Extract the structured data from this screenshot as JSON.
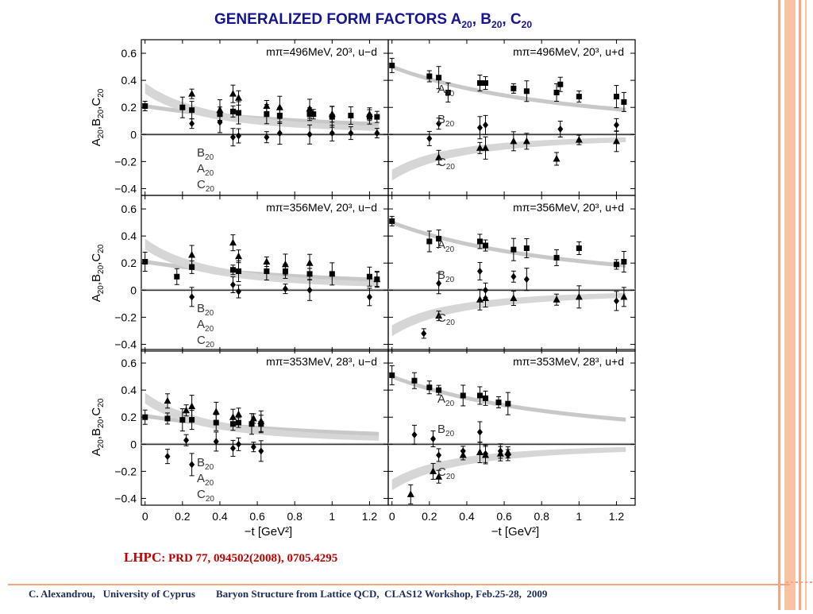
{
  "slide": {
    "title_prefix": "GENERALIZED FORM FACTORS A",
    "title_sub1": "20",
    "title_sep1": ", B",
    "title_sub2": "20",
    "title_sep2": ", C",
    "title_sub3": "20",
    "citation_main": "LHPC",
    "citation_ref": ": PRD 77, 094502(2008), 0705.4295",
    "footer_left": "C. Alexandrou,   University of Cyprus",
    "footer_right": "Baryon Structure from Lattice QCD,  CLAS12 Workshop, Feb.25-28,  2009",
    "colors": {
      "title": "#15158f",
      "citation": "#c00000",
      "footer": "#1d2a5a",
      "border_orange": "#f4a582",
      "band": "#d0d0d0"
    }
  },
  "chart_data": [
    {
      "type": "scatter",
      "panel_label": "mπ=496MeV, 20³, u−d",
      "ylabel": "A20,B20,C20",
      "legend": [
        "B20",
        "A20",
        "C20"
      ],
      "xlim": [
        0,
        1.3
      ],
      "ylim": [
        -0.45,
        0.7
      ],
      "series": [
        {
          "name": "A20",
          "marker": "square",
          "x": [
            0,
            0.2,
            0.25,
            0.4,
            0.47,
            0.5,
            0.65,
            0.72,
            0.88,
            0.9,
            1.0,
            1.1,
            1.2,
            1.24
          ],
          "y": [
            0.21,
            0.2,
            0.18,
            0.15,
            0.17,
            0.16,
            0.15,
            0.14,
            0.15,
            0.15,
            0.13,
            0.14,
            0.13,
            0.13
          ]
        },
        {
          "name": "B20",
          "marker": "diamond",
          "x": [
            0.25,
            0.4,
            0.47,
            0.5,
            0.65,
            0.72,
            0.88,
            1.0,
            1.1,
            1.24
          ],
          "y": [
            0.08,
            0.09,
            -0.02,
            -0.01,
            -0.02,
            0.01,
            0.0,
            0.01,
            0.01,
            0.01
          ]
        },
        {
          "name": "C20",
          "marker": "triangle",
          "x": [
            0.25,
            0.4,
            0.47,
            0.5,
            0.65,
            0.72,
            0.88,
            1.0,
            1.2
          ],
          "y": [
            0.3,
            0.18,
            0.3,
            0.27,
            0.21,
            0.2,
            0.19,
            0.15,
            0.15
          ]
        }
      ]
    },
    {
      "type": "scatter",
      "panel_label": "mπ=496MeV, 20³, u+d",
      "legend": [
        "A20",
        "B20",
        "C20"
      ],
      "xlim": [
        0,
        1.3
      ],
      "ylim": [
        -0.45,
        0.7
      ],
      "series": [
        {
          "name": "A20",
          "marker": "square",
          "x": [
            0,
            0.2,
            0.25,
            0.3,
            0.47,
            0.5,
            0.65,
            0.72,
            0.88,
            0.9,
            1.0,
            1.2,
            1.24
          ],
          "y": [
            0.51,
            0.43,
            0.42,
            0.31,
            0.38,
            0.38,
            0.34,
            0.32,
            0.31,
            0.37,
            0.28,
            0.28,
            0.24
          ]
        },
        {
          "name": "B20",
          "marker": "diamond",
          "x": [
            0.2,
            0.25,
            0.47,
            0.5,
            0.9,
            1.2
          ],
          "y": [
            -0.03,
            0.08,
            0.05,
            0.07,
            0.04,
            0.07
          ]
        },
        {
          "name": "C20",
          "marker": "triangle",
          "x": [
            0.25,
            0.47,
            0.5,
            0.65,
            0.72,
            0.88,
            1.0,
            1.2
          ],
          "y": [
            -0.17,
            -0.1,
            -0.1,
            -0.05,
            -0.05,
            -0.18,
            -0.04,
            -0.05
          ]
        }
      ]
    },
    {
      "type": "scatter",
      "panel_label": "mπ=356MeV, 20³, u−d",
      "ylabel": "A20,B20,C20",
      "legend": [
        "B20",
        "A20",
        "C20"
      ],
      "xlim": [
        0,
        1.3
      ],
      "ylim": [
        -0.45,
        0.7
      ],
      "series": [
        {
          "name": "A20",
          "marker": "square",
          "x": [
            0,
            0.17,
            0.25,
            0.47,
            0.5,
            0.65,
            0.75,
            0.88,
            1.0,
            1.2,
            1.24
          ],
          "y": [
            0.21,
            0.1,
            0.17,
            0.15,
            0.14,
            0.14,
            0.14,
            0.12,
            0.12,
            0.1,
            0.08
          ]
        },
        {
          "name": "B20",
          "marker": "diamond",
          "x": [
            0.25,
            0.47,
            0.5,
            0.75,
            0.88,
            1.2
          ],
          "y": [
            -0.05,
            0.04,
            -0.01,
            0.01,
            0.0,
            -0.05
          ]
        },
        {
          "name": "C20",
          "marker": "triangle",
          "x": [
            0.25,
            0.47,
            0.5,
            0.65,
            0.75,
            0.88,
            1.24
          ],
          "y": [
            0.26,
            0.35,
            0.25,
            0.21,
            0.19,
            0.2,
            0.08
          ]
        }
      ]
    },
    {
      "type": "scatter",
      "panel_label": "mπ=356MeV, 20³, u+d",
      "legend": [
        "A20",
        "B20",
        "C20"
      ],
      "xlim": [
        0,
        1.3
      ],
      "ylim": [
        -0.45,
        0.7
      ],
      "series": [
        {
          "name": "A20",
          "marker": "square",
          "x": [
            0,
            0.2,
            0.25,
            0.47,
            0.5,
            0.65,
            0.72,
            0.88,
            1.0,
            1.2,
            1.24
          ],
          "y": [
            0.51,
            0.36,
            0.38,
            0.36,
            0.33,
            0.3,
            0.31,
            0.24,
            0.31,
            0.19,
            0.21
          ]
        },
        {
          "name": "B20",
          "marker": "diamond",
          "x": [
            0.17,
            0.25,
            0.47,
            0.5,
            0.65,
            0.72,
            1.2
          ],
          "y": [
            -0.32,
            0.05,
            0.14,
            0.0,
            0.1,
            0.08,
            -0.08
          ]
        },
        {
          "name": "C20",
          "marker": "triangle",
          "x": [
            0.25,
            0.47,
            0.5,
            0.65,
            0.88,
            1.0,
            1.24
          ],
          "y": [
            -0.19,
            -0.07,
            -0.06,
            -0.06,
            -0.07,
            -0.05,
            -0.05
          ]
        }
      ]
    },
    {
      "type": "scatter",
      "panel_label": "mπ=353MeV, 28³, u−d",
      "ylabel": "A20,B20,C20",
      "legend": [
        "B20",
        "A20",
        "C20"
      ],
      "xlim": [
        0,
        1.3
      ],
      "ylim": [
        -0.45,
        0.7
      ],
      "series": [
        {
          "name": "A20",
          "marker": "square",
          "x": [
            0,
            0.12,
            0.2,
            0.25,
            0.38,
            0.47,
            0.5,
            0.57,
            0.62
          ],
          "y": [
            0.2,
            0.19,
            0.18,
            0.18,
            0.16,
            0.15,
            0.16,
            0.15,
            0.15
          ]
        },
        {
          "name": "B20",
          "marker": "diamond",
          "x": [
            0.12,
            0.22,
            0.25,
            0.38,
            0.47,
            0.5,
            0.58,
            0.62
          ],
          "y": [
            -0.09,
            0.03,
            -0.15,
            0.02,
            -0.03,
            0.0,
            -0.02,
            -0.05
          ]
        },
        {
          "name": "C20",
          "marker": "triangle",
          "x": [
            0.12,
            0.22,
            0.25,
            0.38,
            0.47,
            0.5,
            0.58,
            0.62
          ],
          "y": [
            0.32,
            0.25,
            0.28,
            0.24,
            0.2,
            0.22,
            0.19,
            0.17
          ]
        }
      ]
    },
    {
      "type": "scatter",
      "panel_label": "mπ=353MeV, 28³, u+d",
      "legend": [
        "A20",
        "B20",
        "C20"
      ],
      "xlim": [
        0,
        1.3
      ],
      "ylim": [
        -0.45,
        0.7
      ],
      "series": [
        {
          "name": "A20",
          "marker": "square",
          "x": [
            0,
            0.12,
            0.2,
            0.25,
            0.38,
            0.47,
            0.5,
            0.57,
            0.62
          ],
          "y": [
            0.51,
            0.47,
            0.42,
            0.4,
            0.36,
            0.36,
            0.34,
            0.31,
            0.3
          ]
        },
        {
          "name": "B20",
          "marker": "diamond",
          "x": [
            0.12,
            0.22,
            0.25,
            0.38,
            0.47,
            0.5,
            0.58,
            0.62
          ],
          "y": [
            0.07,
            0.04,
            -0.08,
            -0.05,
            0.09,
            -0.07,
            -0.05,
            -0.08
          ]
        },
        {
          "name": "C20",
          "marker": "triangle",
          "x": [
            0.1,
            0.22,
            0.25,
            0.38,
            0.47,
            0.5,
            0.58,
            0.62
          ],
          "y": [
            -0.37,
            -0.2,
            -0.24,
            -0.08,
            -0.06,
            -0.08,
            -0.07,
            -0.06
          ]
        }
      ]
    }
  ],
  "axes": {
    "y_ticks": [
      "0.6",
      "0.4",
      "0.2",
      "0",
      "−0.2",
      "−0.4"
    ],
    "x_ticks": [
      "0",
      "0.2",
      "0.4",
      "0.6",
      "0.8",
      "1",
      "1.2"
    ],
    "x_label": "−t [GeV²]",
    "y_label_main": "A",
    "y_label_parts": [
      "A",
      "20",
      ",B",
      "20",
      ",C",
      "20"
    ]
  }
}
